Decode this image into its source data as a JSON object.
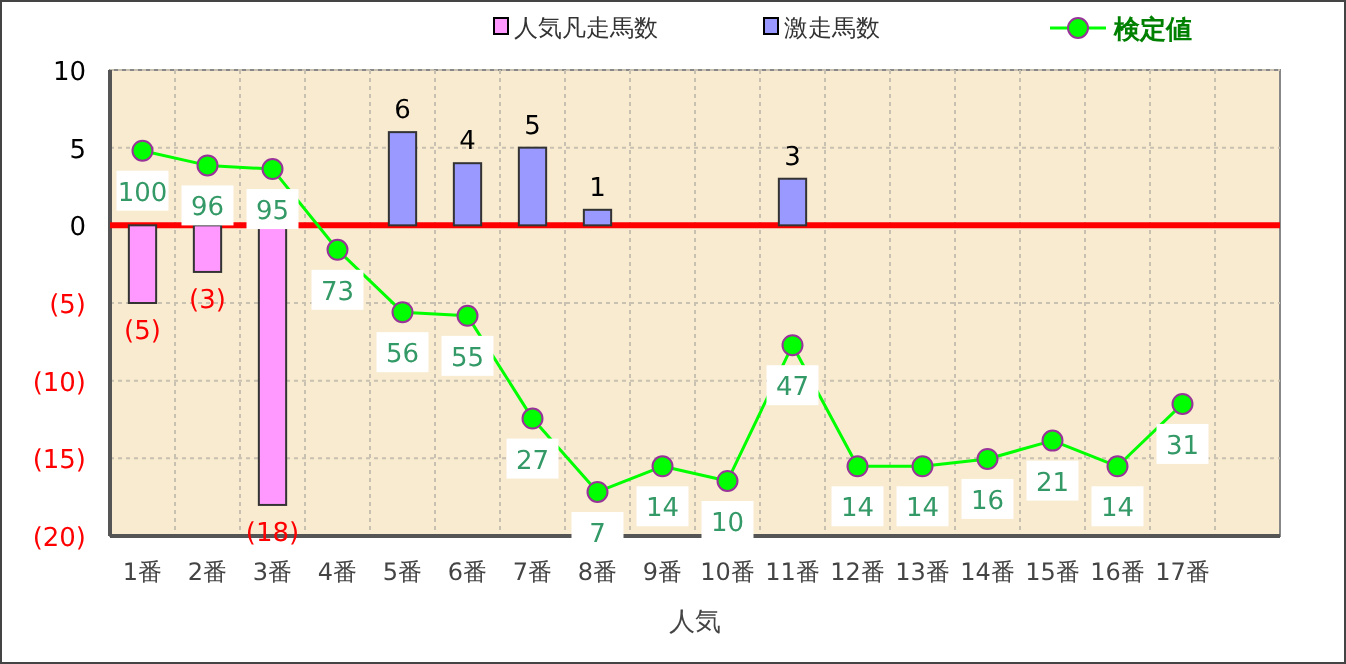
{
  "chart_data": {
    "type": "bar",
    "xlabel": "人気",
    "categories": [
      "1番",
      "2番",
      "3番",
      "4番",
      "5番",
      "6番",
      "7番",
      "8番",
      "9番",
      "10番",
      "11番",
      "12番",
      "13番",
      "14番",
      "15番",
      "16番",
      "17番",
      null
    ],
    "series": [
      {
        "name": "人気凡走馬数",
        "color": "#ff99ff",
        "values": [
          -5,
          -3,
          -18,
          null,
          null,
          null,
          null,
          null,
          null,
          null,
          null,
          null,
          null,
          null,
          null,
          null,
          null,
          null
        ],
        "value_labels": [
          "(5)",
          "(3)",
          "(18)",
          null,
          null,
          null,
          null,
          null,
          null,
          null,
          null,
          null,
          null,
          null,
          null,
          null,
          null,
          null
        ]
      },
      {
        "name": "激走馬数",
        "color": "#9999ff",
        "values": [
          null,
          null,
          null,
          null,
          6,
          4,
          5,
          1,
          null,
          null,
          3,
          null,
          null,
          null,
          null,
          null,
          null,
          null
        ],
        "value_labels": [
          null,
          null,
          null,
          null,
          "6",
          "4",
          "5",
          "1",
          null,
          null,
          "3",
          null,
          null,
          null,
          null,
          null,
          null,
          null
        ]
      },
      {
        "name": "検定値",
        "type": "line",
        "axis": "y2",
        "color": "#00ff00",
        "marker": "circle",
        "data_labels": true,
        "values": [
          100,
          96,
          95,
          73,
          56,
          55,
          27,
          7,
          14,
          10,
          47,
          14,
          14,
          16,
          21,
          14,
          31,
          null
        ]
      }
    ],
    "ylim": [
      -20,
      10
    ],
    "yticks": [
      {
        "value": -20,
        "label": "(20)"
      },
      {
        "value": -15,
        "label": "(15)"
      },
      {
        "value": -10,
        "label": "(10)"
      },
      {
        "value": -5,
        "label": "(5)"
      },
      0,
      5,
      10
    ],
    "y2lim": [
      -5,
      122
    ],
    "tick_labels": "xy",
    "ref_lines": [
      {
        "axis": "y",
        "value": 0,
        "color": "#ff0000"
      }
    ],
    "grid": true,
    "legend": "top"
  }
}
